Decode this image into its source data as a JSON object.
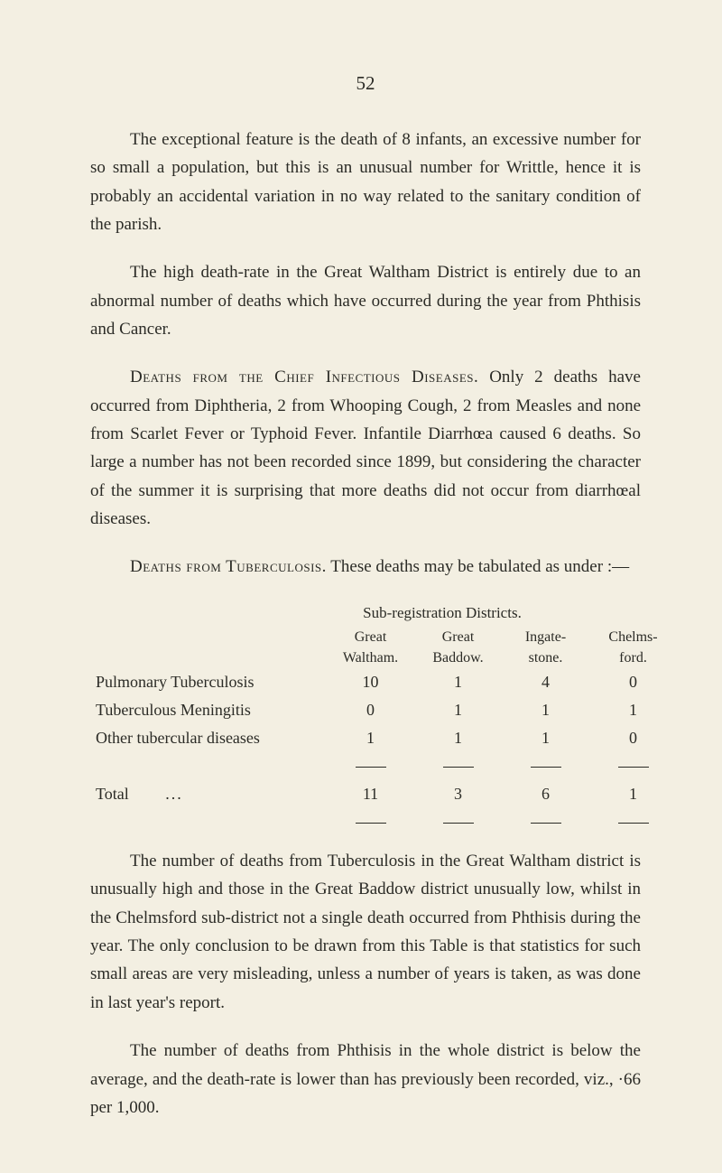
{
  "pageNumber": "52",
  "paragraphs": {
    "p1": "The exceptional feature is the death of 8 infants, an excessive number for so small a population, but this is an unusual number for Writtle, hence it is probably an accidental variation in no way related to the sanitary condition of the parish.",
    "p2": "The high death-rate in the Great Waltham District is entirely due to an abnormal number of deaths which have occurred during the year from Phthisis and Cancer.",
    "p3_lead": "Deaths from the Chief Infectious Diseases.",
    "p3_rest": "  Only 2 deaths have occurred from Diphtheria, 2 from Whooping Cough, 2 from Measles and none from Scarlet Fever or Typhoid Fever.  Infantile Diarrhœa caused 6 deaths.  So large a number has not been recorded since 1899, but considering the character of the summer it is surprising that more deaths did not occur from diarrhœal diseases.",
    "p4_lead": "Deaths from Tuberculosis.",
    "p4_rest": "  These deaths may be tabulated as under :—",
    "p5": "The number of deaths from Tuberculosis in the Great Waltham district is unusually high and those in the Great Baddow district unusually low, whilst in the Chelmsford sub-district not a single death occurred from Phthisis during the year.  The only conclusion to be drawn from this Table is that statistics for such small areas are very misleading, unless a number of years is taken, as was done in last year's report.",
    "p6": "The number of deaths from Phthisis in the whole district is below the average, and the death-rate is lower than has previously been recorded, viz., ·66 per 1,000."
  },
  "table": {
    "superHeader": "Sub-registration Districts.",
    "columns": {
      "c1a": "Great",
      "c1b": "Waltham.",
      "c2a": "Great",
      "c2b": "Baddow.",
      "c3a": "Ingate-",
      "c3b": "stone.",
      "c4a": "Chelms-",
      "c4b": "ford."
    },
    "rows": [
      {
        "label": "Pulmonary Tuberculosis",
        "v": [
          "10",
          "1",
          "4",
          "0"
        ]
      },
      {
        "label": "Tuberculous Meningitis",
        "v": [
          "0",
          "1",
          "1",
          "1"
        ]
      },
      {
        "label": "Other tubercular diseases",
        "v": [
          "1",
          "1",
          "1",
          "0"
        ]
      }
    ],
    "total": {
      "label": "Total",
      "dots": "...",
      "v": [
        "11",
        "3",
        "6",
        "1"
      ]
    }
  }
}
